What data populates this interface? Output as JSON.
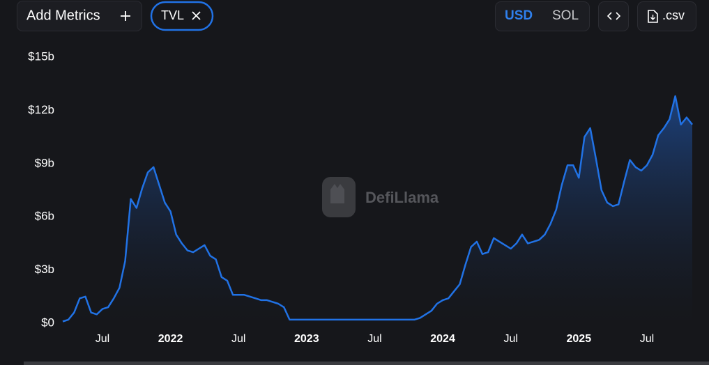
{
  "ui": {
    "add_metrics": "Add Metrics",
    "metric_chip": "TVL",
    "currency_options": [
      "USD",
      "SOL"
    ],
    "download": ".csv",
    "watermark": "DefiLlama"
  },
  "chart_data": {
    "type": "area",
    "color": "#2172e5",
    "categories": [
      null,
      null,
      null,
      null,
      null,
      null,
      null,
      "Jul",
      null,
      null,
      null,
      null,
      null,
      null,
      null,
      null,
      null,
      null,
      null,
      "2022",
      null,
      null,
      null,
      null,
      null,
      null,
      null,
      null,
      null,
      null,
      null,
      "Jul",
      null,
      null,
      null,
      null,
      null,
      null,
      null,
      null,
      null,
      null,
      null,
      "2023",
      null,
      null,
      null,
      null,
      null,
      null,
      null,
      null,
      null,
      null,
      null,
      "Jul",
      null,
      null,
      null,
      null,
      null,
      null,
      null,
      null,
      null,
      null,
      null,
      "2024",
      null,
      null,
      null,
      null,
      null,
      null,
      null,
      null,
      null,
      null,
      null,
      "Jul",
      null,
      null,
      null,
      null,
      null,
      null,
      null,
      null,
      null,
      null,
      null,
      "2025",
      null,
      null,
      null,
      null,
      null,
      null,
      null,
      null,
      null,
      null,
      null,
      "Jul",
      null,
      null,
      null,
      null,
      null,
      null,
      null,
      null
    ],
    "values": [
      0.1,
      0.2,
      0.6,
      1.4,
      1.5,
      0.6,
      0.5,
      0.8,
      0.9,
      1.4,
      2.0,
      3.5,
      7.0,
      6.5,
      7.6,
      8.5,
      8.8,
      7.8,
      6.8,
      6.3,
      5.0,
      4.5,
      4.1,
      4.0,
      4.2,
      4.4,
      3.8,
      3.6,
      2.6,
      2.4,
      1.6,
      1.6,
      1.6,
      1.5,
      1.4,
      1.3,
      1.3,
      1.2,
      1.1,
      0.9,
      0.2,
      0.2,
      0.2,
      0.2,
      0.2,
      0.2,
      0.2,
      0.2,
      0.2,
      0.2,
      0.2,
      0.2,
      0.2,
      0.2,
      0.2,
      0.2,
      0.2,
      0.2,
      0.2,
      0.2,
      0.2,
      0.2,
      0.2,
      0.3,
      0.5,
      0.7,
      1.1,
      1.3,
      1.4,
      1.8,
      2.2,
      3.3,
      4.3,
      4.6,
      3.9,
      4.0,
      4.8,
      4.6,
      4.4,
      4.2,
      4.5,
      5.0,
      4.5,
      4.6,
      4.7,
      5.0,
      5.6,
      6.4,
      7.8,
      8.9,
      8.9,
      8.2,
      10.5,
      11.0,
      9.3,
      7.5,
      6.8,
      6.6,
      6.7,
      8.0,
      9.2,
      8.8,
      8.6,
      8.9,
      9.5,
      10.6,
      11.0,
      11.5,
      12.8,
      11.2,
      11.6,
      11.2
    ],
    "ylim": [
      0,
      15
    ],
    "yticks": [
      {
        "value": 0,
        "label": "$0"
      },
      {
        "value": 3,
        "label": "$3b"
      },
      {
        "value": 6,
        "label": "$6b"
      },
      {
        "value": 9,
        "label": "$9b"
      },
      {
        "value": 12,
        "label": "$12b"
      },
      {
        "value": 15,
        "label": "$15b"
      }
    ]
  }
}
